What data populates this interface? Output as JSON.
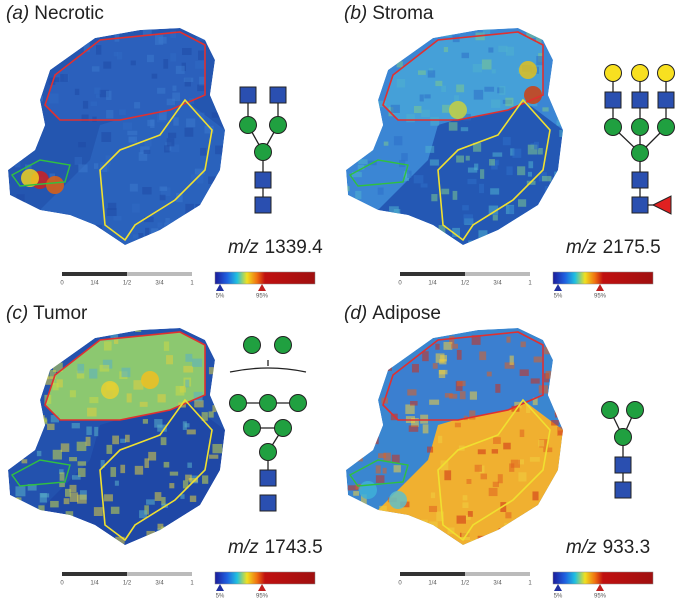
{
  "panels": [
    {
      "label": "(a)",
      "name": "Necrotic",
      "mz_label": "m/z",
      "mz": "1339.4"
    },
    {
      "label": "(b)",
      "name": "Stroma",
      "mz_label": "m/z",
      "mz": "2175.5"
    },
    {
      "label": "(c)",
      "name": "Tumor",
      "mz_label": "m/z",
      "mz": "1743.5"
    },
    {
      "label": "(d)",
      "name": "Adipose",
      "mz_label": "m/z",
      "mz": "933.3"
    }
  ],
  "scale_ticks": [
    "0",
    "1/4",
    "1/2",
    "3/4",
    "1"
  ],
  "colorbar_ticks": [
    "5%",
    "95%"
  ]
}
